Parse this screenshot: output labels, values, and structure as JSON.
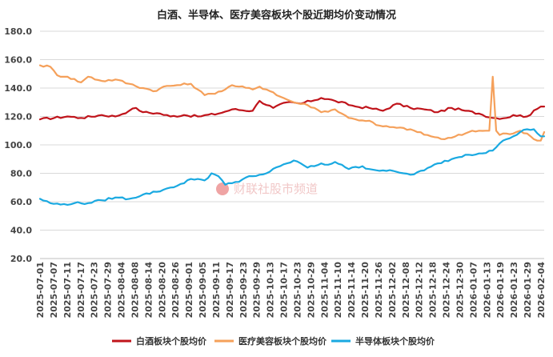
{
  "chart_data": {
    "type": "line",
    "title": "白酒、半导体、医疗美容板块个股近期均价变动情况",
    "ylim": [
      20,
      180
    ],
    "yticks": [
      "20.0",
      "40.0",
      "60.0",
      "80.0",
      "100.0",
      "120.0",
      "140.0",
      "160.0",
      "180.0"
    ],
    "ytick_values": [
      20,
      40,
      60,
      80,
      100,
      120,
      140,
      160,
      180
    ],
    "grid": true,
    "legend_position": "bottom",
    "xtick_labels": [
      "2025-07-01",
      "2025-07-07",
      "2025-07-11",
      "2025-07-17",
      "2025-07-23",
      "2025-07-29",
      "2025-08-04",
      "2025-08-08",
      "2025-08-14",
      "2025-08-20",
      "2025-08-26",
      "2025-09-01",
      "2025-09-05",
      "2025-09-11",
      "2025-09-17",
      "2025-09-23",
      "2025-09-29",
      "2025-10-13",
      "2025-10-17",
      "2025-10-23",
      "2025-10-29",
      "2025-11-04",
      "2025-11-10",
      "2025-11-14",
      "2025-11-20",
      "2025-11-26",
      "2025-12-02",
      "2025-12-08",
      "2025-12-12",
      "2025-12-18",
      "2025-12-24",
      "2025-12-30",
      "2026-01-07",
      "2026-01-13",
      "2026-01-19",
      "2026-01-23",
      "2026-01-29",
      "2026-02-04"
    ],
    "n_points": 148,
    "series": [
      {
        "name": "白酒板块个股均价",
        "color": "#c0141b",
        "anchors": [
          [
            0,
            118
          ],
          [
            8,
            120
          ],
          [
            12,
            119
          ],
          [
            18,
            121
          ],
          [
            22,
            120
          ],
          [
            26,
            124
          ],
          [
            28,
            126
          ],
          [
            30,
            123
          ],
          [
            35,
            122
          ],
          [
            38,
            120
          ],
          [
            42,
            121
          ],
          [
            46,
            120
          ],
          [
            52,
            122
          ],
          [
            56,
            125
          ],
          [
            62,
            124
          ],
          [
            64,
            131
          ],
          [
            68,
            126
          ],
          [
            72,
            130
          ],
          [
            76,
            129
          ],
          [
            82,
            133
          ],
          [
            86,
            131
          ],
          [
            92,
            127
          ],
          [
            96,
            126
          ],
          [
            100,
            124
          ],
          [
            104,
            129
          ],
          [
            108,
            126
          ],
          [
            112,
            125
          ],
          [
            116,
            123
          ],
          [
            120,
            126
          ],
          [
            124,
            124
          ],
          [
            128,
            122
          ],
          [
            132,
            119
          ],
          [
            136,
            119
          ],
          [
            138,
            121
          ],
          [
            142,
            120
          ],
          [
            146,
            127
          ],
          [
            147,
            127
          ]
        ]
      },
      {
        "name": "医疗美容板块个股均价",
        "color": "#f5a05a",
        "anchors": [
          [
            0,
            156
          ],
          [
            3,
            155
          ],
          [
            5,
            149
          ],
          [
            8,
            148
          ],
          [
            12,
            144
          ],
          [
            14,
            148
          ],
          [
            18,
            145
          ],
          [
            22,
            146
          ],
          [
            26,
            143
          ],
          [
            30,
            140
          ],
          [
            34,
            138
          ],
          [
            36,
            141
          ],
          [
            40,
            142
          ],
          [
            44,
            143
          ],
          [
            46,
            139
          ],
          [
            48,
            135
          ],
          [
            50,
            136
          ],
          [
            54,
            139
          ],
          [
            56,
            142
          ],
          [
            58,
            141
          ],
          [
            62,
            139
          ],
          [
            64,
            141
          ],
          [
            66,
            139
          ],
          [
            68,
            137
          ],
          [
            70,
            134
          ],
          [
            74,
            130
          ],
          [
            78,
            128
          ],
          [
            80,
            126
          ],
          [
            82,
            123
          ],
          [
            86,
            125
          ],
          [
            88,
            122
          ],
          [
            90,
            119
          ],
          [
            92,
            118
          ],
          [
            96,
            117
          ],
          [
            98,
            114
          ],
          [
            100,
            113
          ],
          [
            104,
            112
          ],
          [
            108,
            111
          ],
          [
            110,
            109
          ],
          [
            114,
            106
          ],
          [
            118,
            104
          ],
          [
            120,
            105
          ],
          [
            124,
            108
          ],
          [
            126,
            110
          ],
          [
            128,
            110
          ],
          [
            130,
            110
          ],
          [
            131,
            110
          ],
          [
            132,
            148
          ],
          [
            133,
            110
          ],
          [
            134,
            107
          ],
          [
            136,
            108
          ],
          [
            138,
            108
          ],
          [
            140,
            110
          ],
          [
            142,
            108
          ],
          [
            144,
            104
          ],
          [
            146,
            103
          ],
          [
            147,
            109
          ]
        ]
      },
      {
        "name": "半导体板块个股均价",
        "color": "#1aa9e1",
        "anchors": [
          [
            0,
            62
          ],
          [
            3,
            59
          ],
          [
            6,
            58
          ],
          [
            10,
            59
          ],
          [
            14,
            59
          ],
          [
            18,
            61
          ],
          [
            22,
            63
          ],
          [
            26,
            62
          ],
          [
            30,
            65
          ],
          [
            34,
            67
          ],
          [
            38,
            70
          ],
          [
            42,
            73
          ],
          [
            44,
            76
          ],
          [
            46,
            76
          ],
          [
            48,
            75
          ],
          [
            50,
            80
          ],
          [
            52,
            78
          ],
          [
            54,
            72
          ],
          [
            56,
            73
          ],
          [
            58,
            74
          ],
          [
            60,
            77
          ],
          [
            62,
            78
          ],
          [
            66,
            80
          ],
          [
            70,
            85
          ],
          [
            72,
            87
          ],
          [
            74,
            89
          ],
          [
            76,
            87
          ],
          [
            78,
            84
          ],
          [
            80,
            85
          ],
          [
            82,
            87
          ],
          [
            84,
            86
          ],
          [
            86,
            88
          ],
          [
            88,
            86
          ],
          [
            90,
            83
          ],
          [
            94,
            85
          ],
          [
            96,
            83
          ],
          [
            100,
            82
          ],
          [
            104,
            81
          ],
          [
            106,
            80
          ],
          [
            108,
            79
          ],
          [
            112,
            82
          ],
          [
            116,
            87
          ],
          [
            120,
            90
          ],
          [
            124,
            93
          ],
          [
            128,
            94
          ],
          [
            132,
            96
          ],
          [
            134,
            101
          ],
          [
            136,
            104
          ],
          [
            138,
            106
          ],
          [
            140,
            109
          ],
          [
            142,
            111
          ],
          [
            144,
            111
          ],
          [
            146,
            106
          ],
          [
            147,
            106
          ]
        ]
      }
    ]
  },
  "watermark": {
    "text": "财联社股市频道",
    "logo_color": "#e25a5a"
  }
}
